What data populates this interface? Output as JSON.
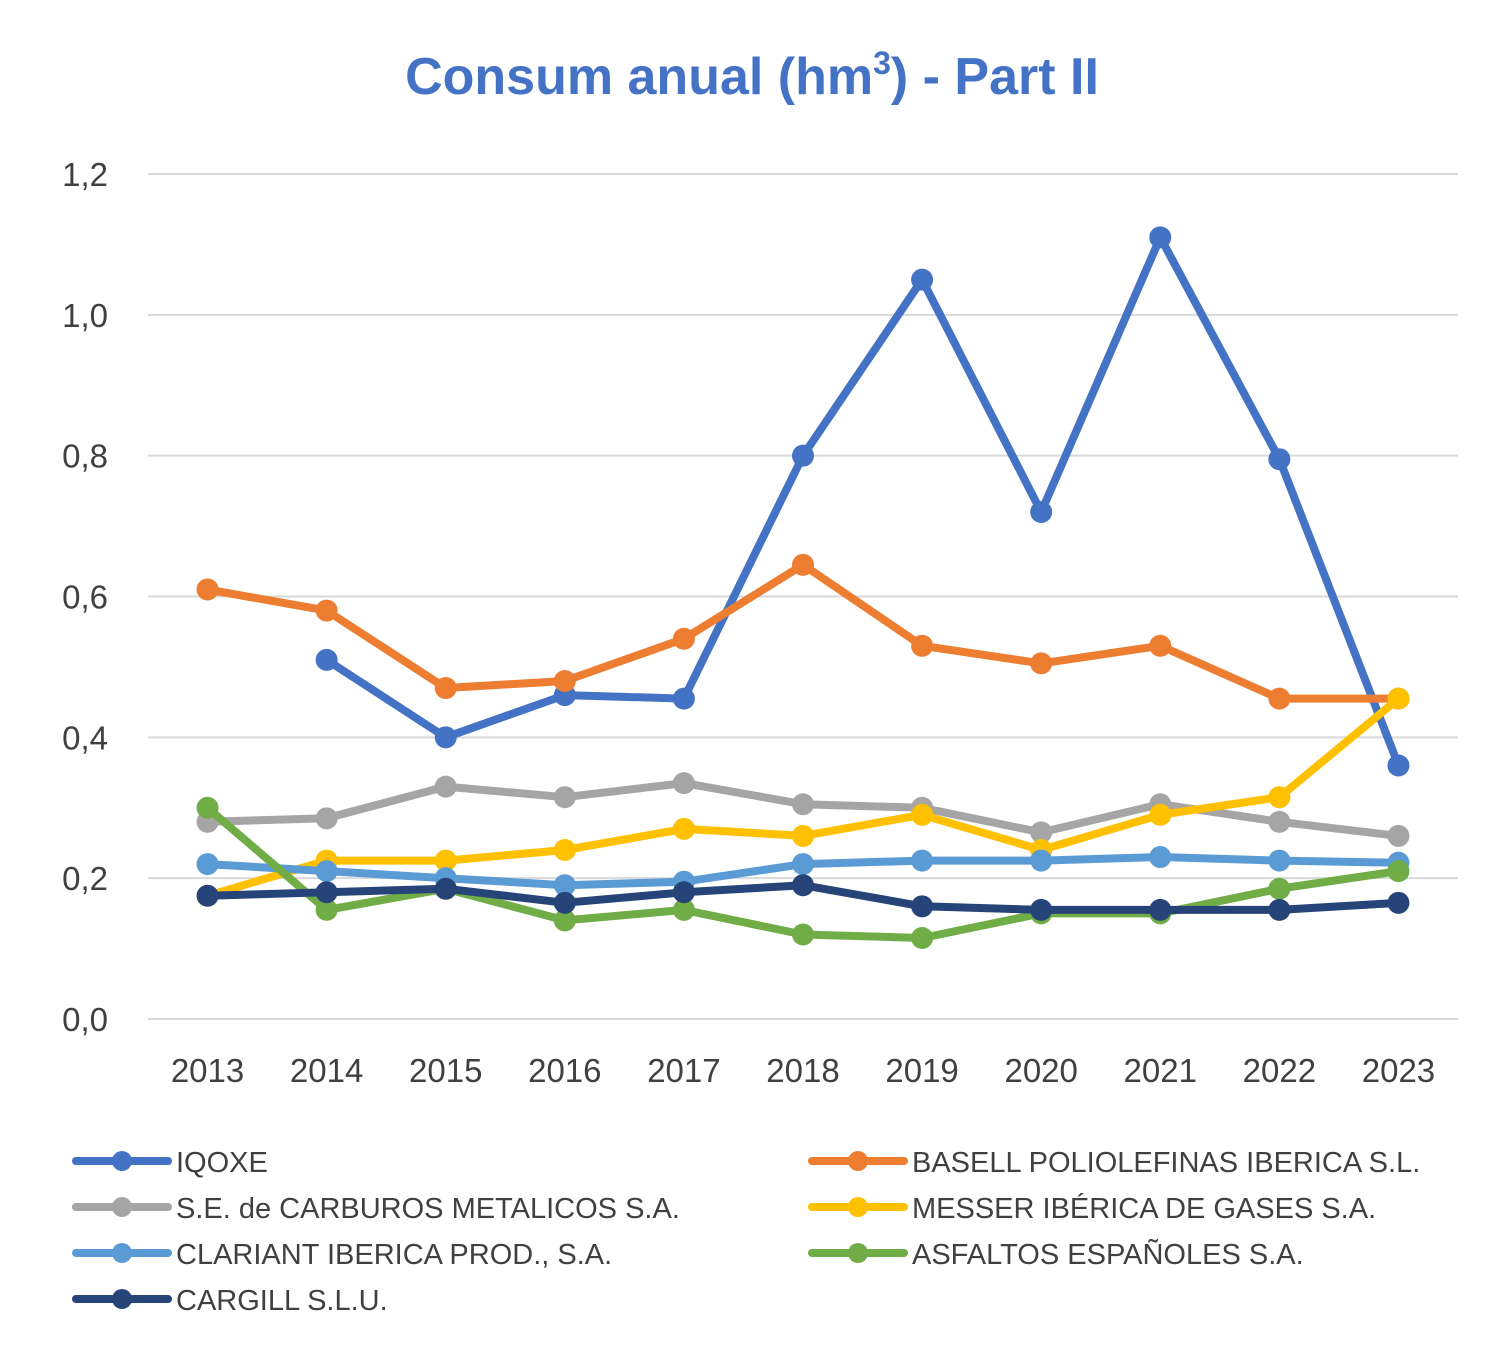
{
  "chart_data": {
    "type": "line",
    "title_main": "Consum anual (hm",
    "title_sup": "3",
    "title_end": ") - Part II",
    "xlabel": "",
    "ylabel": "",
    "categories": [
      "2013",
      "2014",
      "2015",
      "2016",
      "2017",
      "2018",
      "2019",
      "2020",
      "2021",
      "2022",
      "2023"
    ],
    "ylim": [
      0,
      1.2
    ],
    "yticks": [
      "0,0",
      "0,2",
      "0,4",
      "0,6",
      "0,8",
      "1,0",
      "1,2"
    ],
    "grid": true,
    "legend_position": "bottom",
    "series": [
      {
        "name": "IQOXE",
        "color": "#4472c4",
        "values": [
          null,
          0.51,
          0.4,
          0.46,
          0.455,
          0.8,
          1.05,
          0.72,
          1.11,
          0.795,
          0.36
        ]
      },
      {
        "name": "BASELL POLIOLEFINAS IBERICA S.L.",
        "color": "#ed7d31",
        "values": [
          0.61,
          0.58,
          0.47,
          0.48,
          0.54,
          0.645,
          0.53,
          0.505,
          0.53,
          0.455,
          0.455
        ]
      },
      {
        "name": "S.E. de CARBUROS METALICOS S.A.",
        "color": "#a5a5a5",
        "values": [
          0.28,
          0.285,
          0.33,
          0.315,
          0.335,
          0.305,
          0.3,
          0.265,
          0.305,
          0.28,
          0.26
        ]
      },
      {
        "name": "MESSER IBÉRICA DE GASES S.A.",
        "color": "#ffc000",
        "values": [
          0.175,
          0.225,
          0.225,
          0.24,
          0.27,
          0.26,
          0.29,
          0.24,
          0.29,
          0.315,
          0.455
        ]
      },
      {
        "name": "CLARIANT IBERICA PROD., S.A.",
        "color": "#5b9bd5",
        "values": [
          0.22,
          0.21,
          0.2,
          0.19,
          0.195,
          0.22,
          0.225,
          0.225,
          0.23,
          0.225,
          0.222
        ]
      },
      {
        "name": "ASFALTOS ESPAÑOLES S.A.",
        "color": "#70ad47",
        "values": [
          0.3,
          0.155,
          0.185,
          0.14,
          0.155,
          0.12,
          0.115,
          0.15,
          0.15,
          0.185,
          0.21
        ]
      },
      {
        "name": "CARGILL S.L.U.",
        "color": "#264478",
        "values": [
          0.175,
          0.18,
          0.185,
          0.165,
          0.18,
          0.19,
          0.16,
          0.155,
          0.155,
          0.155,
          0.165
        ]
      }
    ]
  }
}
